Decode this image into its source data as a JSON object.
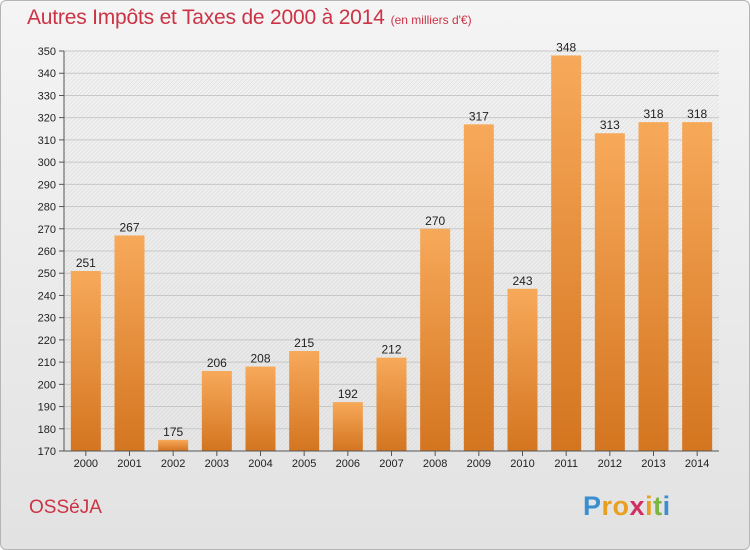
{
  "header": {
    "title": "Autres Impôts et Taxes de 2000 à 2014",
    "unit": "(en milliers d'€)"
  },
  "footer": {
    "commune": "OSSéJA",
    "logo_letters": [
      "P",
      "r",
      "o",
      "x",
      "i",
      "t",
      "i"
    ],
    "logo_colors": [
      "#3a8fd0",
      "#e8a020",
      "#e8a020",
      "#d03060",
      "#e8a020",
      "#7ab640",
      "#3a8fd0"
    ]
  },
  "colors": {
    "bar_light": "#f7a95a",
    "bar_dark": "#d47520",
    "accent": "#cc3344"
  },
  "chart_data": {
    "type": "bar",
    "title": "Autres Impôts et Taxes de 2000 à 2014",
    "subtitle": "(en milliers d'€)",
    "categories": [
      "2000",
      "2001",
      "2002",
      "2003",
      "2004",
      "2005",
      "2006",
      "2007",
      "2008",
      "2009",
      "2010",
      "2011",
      "2012",
      "2013",
      "2014"
    ],
    "values": [
      251,
      267,
      175,
      206,
      208,
      215,
      192,
      212,
      270,
      317,
      243,
      348,
      313,
      318,
      318
    ],
    "ylim": [
      170,
      350
    ],
    "ytick_step": 10,
    "grid": true
  }
}
